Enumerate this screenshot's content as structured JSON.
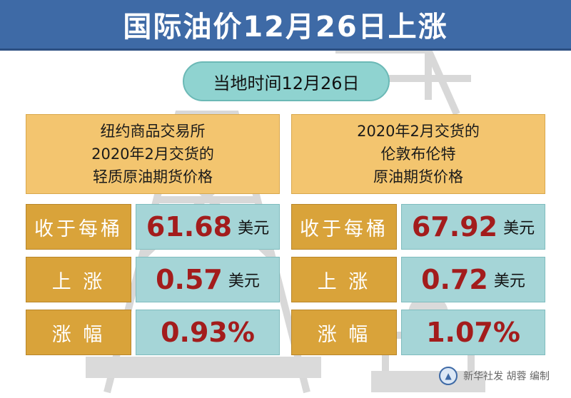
{
  "title": "国际油价12月26日上涨",
  "date_label": "当地时间12月26日",
  "left": {
    "header": [
      "纽约商品交易所",
      "2020年2月交货的",
      "轻质原油期货价格"
    ],
    "rows": [
      {
        "label": "收于每桶",
        "value": "61.68",
        "unit": "美元"
      },
      {
        "label": "上 涨",
        "value": "0.57",
        "unit": "美元"
      },
      {
        "label": "涨 幅",
        "value": "0.93%",
        "unit": ""
      }
    ]
  },
  "right": {
    "header": [
      "2020年2月交货的",
      "伦敦布伦特",
      "原油期货价格"
    ],
    "rows": [
      {
        "label": "收于每桶",
        "value": "67.92",
        "unit": "美元"
      },
      {
        "label": "上 涨",
        "value": "0.72",
        "unit": "美元"
      },
      {
        "label": "涨 幅",
        "value": "1.07%",
        "unit": ""
      }
    ]
  },
  "credit": "新华社发 胡蓉 编制",
  "colors": {
    "banner": "#3e6aa6",
    "header_gold": "#f3c56f",
    "label_gold": "#d9a33a",
    "value_teal": "#a5d5d7",
    "value_red": "#a31c1c",
    "pill": "#8fd3d0"
  }
}
